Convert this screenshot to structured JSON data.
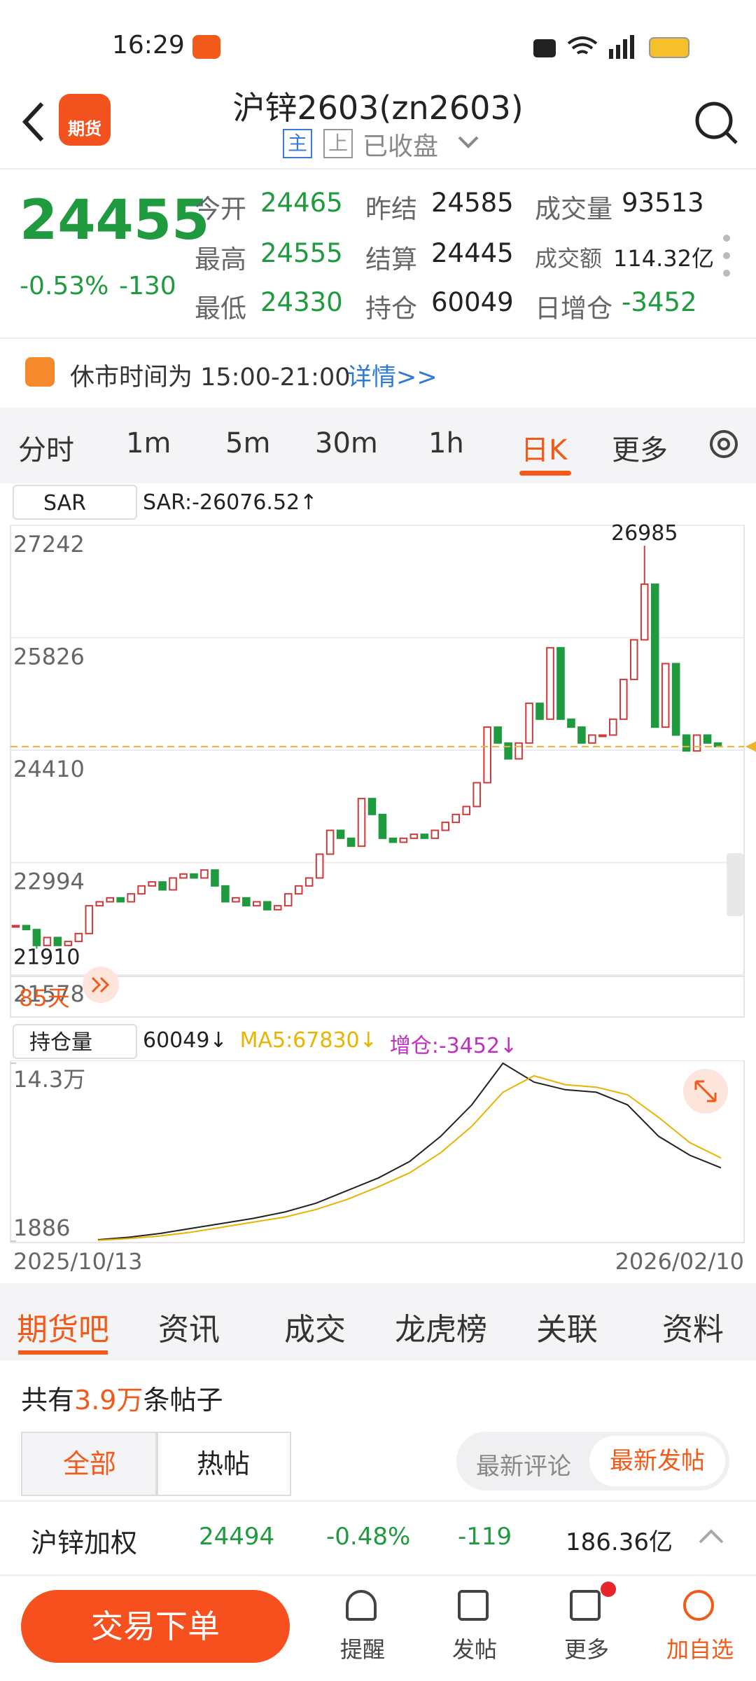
{
  "status": {
    "time": "16:29"
  },
  "header": {
    "title": "沪锌2603(zn2603)",
    "badge": "期货",
    "tag1": "主",
    "tag2": "上",
    "status": "已收盘"
  },
  "quote": {
    "price": 24455,
    "change_pct": "-0.53%",
    "change": -130,
    "fields": [
      {
        "label": "今开",
        "value": 24465,
        "color": "#1f9a3e"
      },
      {
        "label": "昨结",
        "value": 24585,
        "color": "#222222"
      },
      {
        "label": "成交量",
        "value": 93513,
        "color": "#222222"
      },
      {
        "label": "最高",
        "value": 24555,
        "color": "#1f9a3e"
      },
      {
        "label": "结算",
        "value": 24445,
        "color": "#222222"
      },
      {
        "label": "成交额",
        "value": "114.32亿",
        "color": "#222222"
      },
      {
        "label": "最低",
        "value": 24330,
        "color": "#1f9a3e"
      },
      {
        "label": "持仓",
        "value": 60049,
        "color": "#222222"
      },
      {
        "label": "日增仓",
        "value": -3452,
        "color": "#1f9a3e"
      }
    ]
  },
  "notice": {
    "text": "休市时间为 15:00-21:00",
    "link": "详情>>"
  },
  "periods": [
    "分时",
    "1m",
    "5m",
    "30m",
    "1h",
    "日K",
    "更多"
  ],
  "indicator": {
    "name": "SAR",
    "value": "SAR:-26076.52↑"
  },
  "chart_data": [
    {
      "type": "candlestick",
      "values": [
        22200,
        22150,
        21950,
        22050,
        21950,
        22000,
        22100,
        22450,
        22500,
        22550,
        22500,
        22600,
        22700,
        22750,
        22650,
        22800,
        22850,
        22800,
        22900,
        22700,
        22500,
        22550,
        22450,
        22500,
        22400,
        22450,
        22600,
        22700,
        22800,
        23100,
        23400,
        23300,
        23200,
        23800,
        23600,
        23300,
        23250,
        23300,
        23350,
        23300,
        23400,
        23500,
        23600,
        23700,
        24000,
        24700,
        24500,
        24300,
        24500,
        25000,
        24800,
        25700,
        24800,
        24700,
        24500,
        24600,
        24600,
        24800,
        25300,
        25800,
        26500,
        24700,
        25500,
        24600,
        24400,
        24600,
        24500,
        24455
      ],
      "up_color": "#d0393b",
      "down_color": "#1f9a3e",
      "ylim": [
        21578,
        27242
      ],
      "yticks": [
        27242,
        25826,
        24410,
        22994,
        21578
      ],
      "grid": true,
      "high": 26985,
      "low": 21910,
      "span": "85天"
    },
    {
      "type": "line",
      "series": [
        {
          "color": "#222222",
          "values": [
            3000,
            5000,
            8000,
            12000,
            16000,
            20000,
            25000,
            32000,
            42000,
            52000,
            65000,
            85000,
            110000,
            143000,
            128000,
            122000,
            120000,
            110000,
            85000,
            70000,
            60049
          ]
        },
        {
          "color": "#e8b400",
          "values": [
            2500,
            4000,
            6000,
            9000,
            13000,
            17000,
            21000,
            27000,
            35000,
            45000,
            56000,
            72000,
            93000,
            120000,
            133000,
            126000,
            124000,
            118000,
            100000,
            80000,
            67830
          ]
        }
      ],
      "ylim": [
        1886,
        143000
      ],
      "yticks": [
        {
          "value": 143000,
          "label": "14.3万"
        },
        1886
      ],
      "selector": "持仓量",
      "legend": [
        {
          "text": "60049↓",
          "color": "#222222"
        },
        {
          "text": "MA5:67830↓",
          "color": "#e8b400"
        },
        {
          "text": "增仓:-3452↓",
          "color": "#c030c0"
        }
      ],
      "x_start": "2025/10/13",
      "x_end": "2026/02/10"
    }
  ],
  "community": {
    "tabs": [
      "期货吧",
      "资讯",
      "成交",
      "龙虎榜",
      "关联",
      "资料"
    ],
    "count_prefix": "共有",
    "count": "3.9万",
    "count_suffix": "条帖子",
    "filters": [
      "全部",
      "热帖"
    ],
    "sorts": [
      "最新评论",
      "最新发帖"
    ]
  },
  "ticker": {
    "name": "沪锌加权",
    "price": 24494,
    "pct": "-0.48%",
    "change": -119,
    "amount": "186.36亿"
  },
  "footer": {
    "trade": "交易下单",
    "actions": [
      "提醒",
      "发帖",
      "更多",
      "加自选"
    ]
  }
}
